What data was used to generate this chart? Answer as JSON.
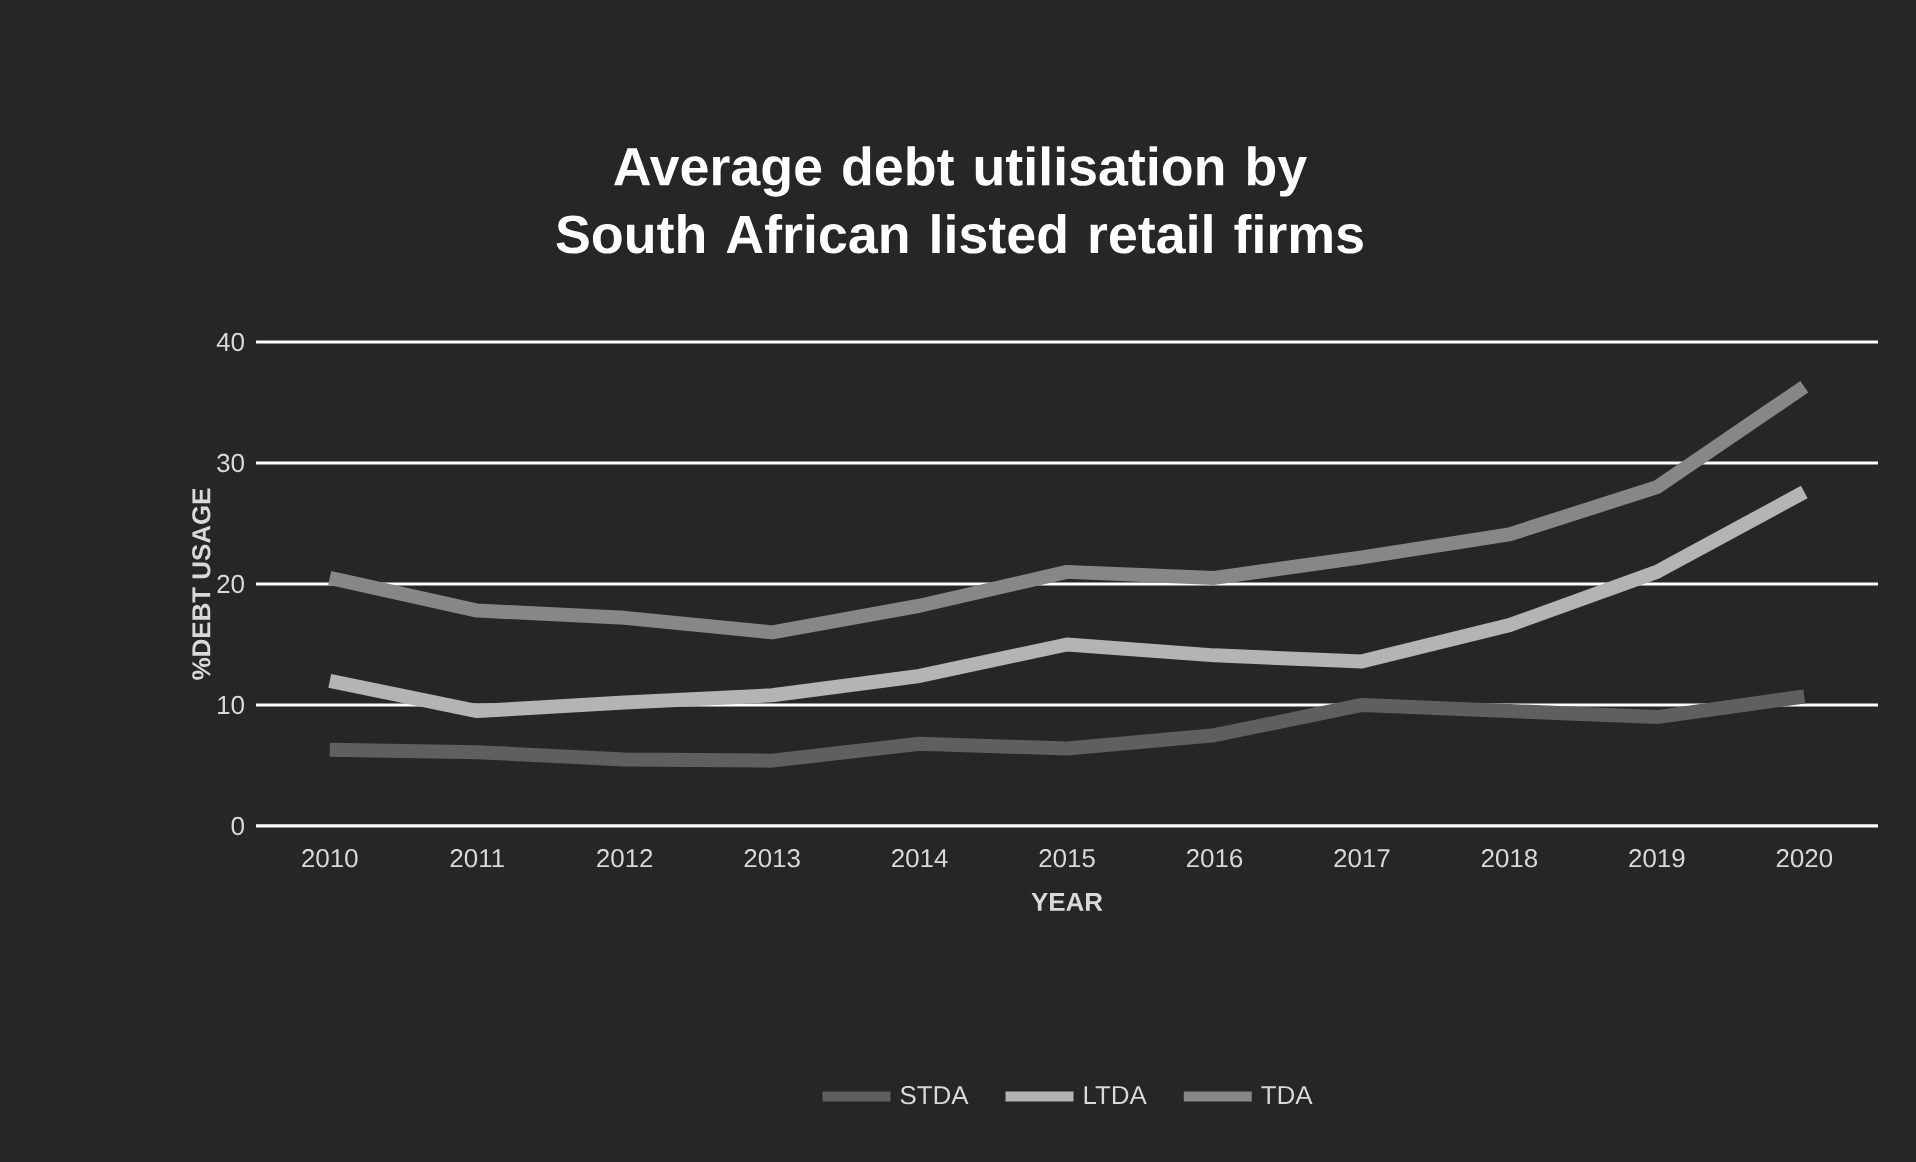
{
  "chart_data": {
    "type": "line",
    "title": "Average debt utilisation by South African listed retail firms",
    "xlabel": "YEAR",
    "ylabel": "%DEBT USAGE",
    "categories": [
      "2010",
      "2011",
      "2012",
      "2013",
      "2014",
      "2015",
      "2016",
      "2017",
      "2018",
      "2019",
      "2020"
    ],
    "series": [
      {
        "name": "STDA",
        "color": "#5f5f5f",
        "values": [
          6.3,
          6.1,
          5.5,
          5.4,
          6.8,
          6.4,
          7.5,
          10.0,
          9.5,
          9.0,
          10.7
        ]
      },
      {
        "name": "LTDA",
        "color": "#b4b4b4",
        "values": [
          12.0,
          9.5,
          10.2,
          10.8,
          12.4,
          15.0,
          14.1,
          13.6,
          16.6,
          21.0,
          27.6
        ]
      },
      {
        "name": "TDA",
        "color": "#878787",
        "values": [
          20.5,
          17.8,
          17.2,
          16.0,
          18.2,
          21.0,
          20.5,
          22.2,
          24.1,
          28.0,
          36.3
        ]
      }
    ],
    "ylim": [
      0,
      40
    ],
    "yticks": [
      0,
      10,
      20,
      30,
      40
    ],
    "grid": "y",
    "legend": "bottom",
    "marker": "none",
    "line_style": "solid"
  }
}
